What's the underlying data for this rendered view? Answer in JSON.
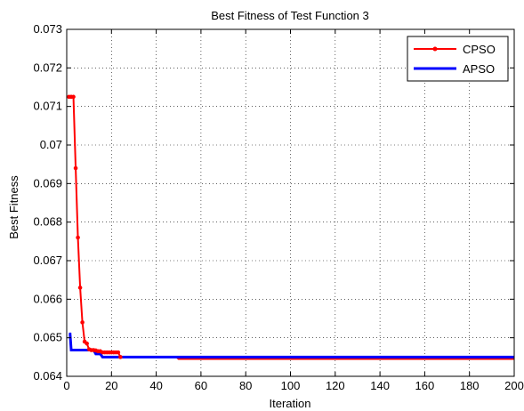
{
  "chart_data": {
    "type": "line",
    "title": "Best Fitness of Test Function 3",
    "xlabel": "Iteration",
    "ylabel": "Best Fitness",
    "xlim": [
      0,
      200
    ],
    "ylim": [
      0.064,
      0.073
    ],
    "xticks": [
      0,
      20,
      40,
      60,
      80,
      100,
      120,
      140,
      160,
      180,
      200
    ],
    "yticks": [
      0.064,
      0.065,
      0.066,
      0.067,
      0.068,
      0.069,
      0.07,
      0.071,
      0.072,
      0.073
    ],
    "ytick_labels": [
      "0.064",
      "0.065",
      "0.066",
      "0.067",
      "0.068",
      "0.069",
      "0.07",
      "0.071",
      "0.072",
      "0.073"
    ],
    "grid": "dotted",
    "legend_position": "top-right",
    "series": [
      {
        "name": "CPSO",
        "color": "#ff0000",
        "marker": "dot",
        "x": [
          1,
          2,
          3,
          4,
          5,
          6,
          7,
          8,
          9,
          10,
          11,
          12,
          13,
          14,
          15,
          16,
          17,
          18,
          19,
          20,
          21,
          22,
          23,
          24,
          30,
          40,
          49,
          50,
          60,
          80,
          100,
          120,
          140,
          160,
          180,
          200
        ],
        "y": [
          0.07125,
          0.07125,
          0.07125,
          0.0694,
          0.0676,
          0.0663,
          0.0654,
          0.0649,
          0.06485,
          0.0647,
          0.06468,
          0.06468,
          0.06467,
          0.06465,
          0.06465,
          0.06462,
          0.06462,
          0.06462,
          0.06462,
          0.06462,
          0.06462,
          0.06462,
          0.06462,
          0.0645,
          0.0645,
          0.0645,
          0.0645,
          0.06445,
          0.06445,
          0.06445,
          0.06445,
          0.06445,
          0.06445,
          0.06445,
          0.06445,
          0.06445
        ],
        "marker_until": 24
      },
      {
        "name": "APSO",
        "color": "#0000ff",
        "marker": "none",
        "x": [
          1,
          1.5,
          2,
          12,
          13,
          15,
          16,
          200
        ],
        "y": [
          0.0651,
          0.0651,
          0.06468,
          0.06468,
          0.06458,
          0.06458,
          0.0645,
          0.0645
        ]
      }
    ]
  }
}
